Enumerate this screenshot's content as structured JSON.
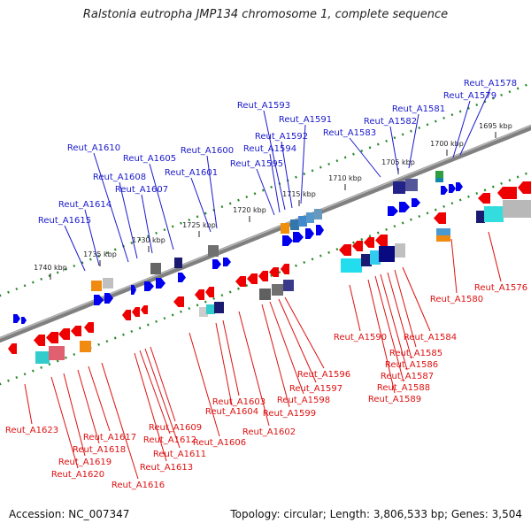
{
  "title": "Ralstonia eutropha JMP134 chromosome 1, complete sequence",
  "footer": {
    "accession": "Accession: NC_007347",
    "summary": "Topology: circular; Length: 3,806,533 bp; Genes: 3,504"
  },
  "colors": {
    "forward_label": "#1a1acc",
    "reverse_label": "#dd1111",
    "backbone": "#808080",
    "ruler": "#2a8a2a"
  },
  "ruler_labels": [
    "1695 kbp",
    "1700 kbp",
    "1705 kbp",
    "1710 kbp",
    "1715 kbp",
    "1720 kbp",
    "1725 kbp",
    "1730 kbp",
    "1735 kbp",
    "1740 kbp"
  ],
  "forward_genes": [
    "Reut_A1578",
    "Reut_A1579",
    "Reut_A1581",
    "Reut_A1582",
    "Reut_A1583",
    "Reut_A1591",
    "Reut_A1592",
    "Reut_A1593",
    "Reut_A1594",
    "Reut_A1595",
    "Reut_A1600",
    "Reut_A1601",
    "Reut_A1605",
    "Reut_A1607",
    "Reut_A1608",
    "Reut_A1610",
    "Reut_A1614",
    "Reut_A1615"
  ],
  "reverse_genes": [
    "Reut_A1576",
    "Reut_A1580",
    "Reut_A1584",
    "Reut_A1585",
    "Reut_A1586",
    "Reut_A1587",
    "Reut_A1588",
    "Reut_A1589",
    "Reut_A1590",
    "Reut_A1596",
    "Reut_A1597",
    "Reut_A1598",
    "Reut_A1599",
    "Reut_A1602",
    "Reut_A1603",
    "Reut_A1604",
    "Reut_A1606",
    "Reut_A1609",
    "Reut_A1611",
    "Reut_A1612",
    "Reut_A1613",
    "Reut_A1616",
    "Reut_A1617",
    "Reut_A1618",
    "Reut_A1619",
    "Reut_A1620",
    "Reut_A1623"
  ]
}
